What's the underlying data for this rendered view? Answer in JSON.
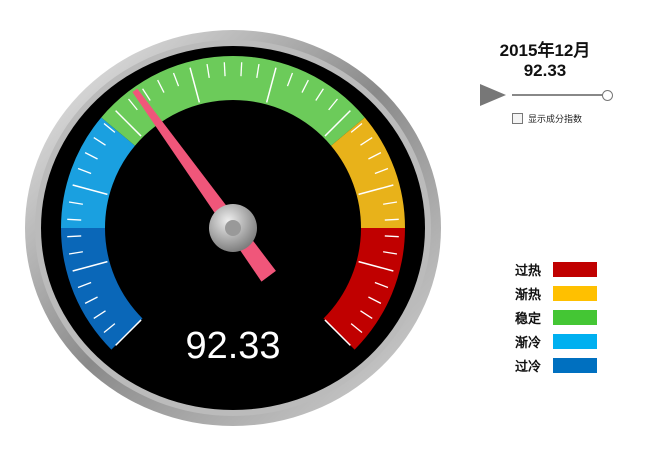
{
  "header": {
    "period": "2015年12月",
    "value": "92.33"
  },
  "gauge": {
    "value_label": "92.33",
    "needle_color": "#f0567a",
    "bands": [
      {
        "name": "过冷",
        "color": "#0a67b8"
      },
      {
        "name": "渐冷",
        "color": "#1aa0e0"
      },
      {
        "name": "稳定",
        "color": "#6ccb5a"
      },
      {
        "name": "渐热",
        "color": "#e8b21a"
      },
      {
        "name": "过热",
        "color": "#c00000"
      }
    ]
  },
  "controls": {
    "play_icon": "play-triangle",
    "slider_level": 1.0,
    "checkbox_label": "显示成分指数",
    "checkbox_checked": false
  },
  "legend": [
    {
      "label": "过热",
      "color": "#c00000"
    },
    {
      "label": "渐热",
      "color": "#ffc000"
    },
    {
      "label": "稳定",
      "color": "#44c634"
    },
    {
      "label": "渐冷",
      "color": "#00b0f0"
    },
    {
      "label": "过冷",
      "color": "#0070c0"
    }
  ]
}
